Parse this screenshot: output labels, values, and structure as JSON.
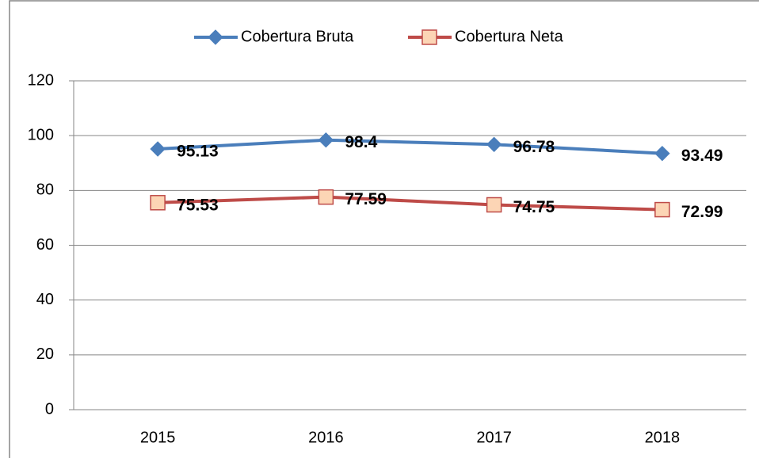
{
  "chart_data": {
    "type": "line",
    "categories": [
      "2015",
      "2016",
      "2017",
      "2018"
    ],
    "series": [
      {
        "name": "Cobertura Bruta",
        "color": "#4a7ebb",
        "marker": "diamond",
        "values": [
          95.13,
          98.4,
          96.78,
          93.49
        ]
      },
      {
        "name": "Cobertura Neta",
        "color": "#be4b48",
        "marker": "square",
        "values": [
          75.53,
          77.59,
          74.75,
          72.99
        ]
      }
    ],
    "ylim": [
      0,
      120
    ],
    "yticks": [
      0,
      20,
      40,
      60,
      80,
      100,
      120
    ],
    "grid": true,
    "legend": "top"
  }
}
